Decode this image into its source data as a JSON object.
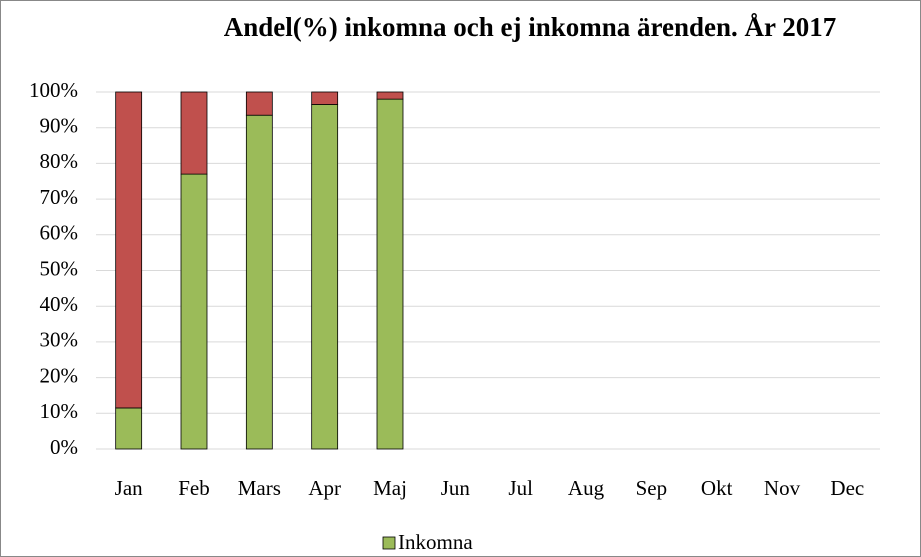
{
  "chart_data": {
    "type": "stacked_bar",
    "title": "Andel(%) inkomna och ej inkomna ärenden.  År 2017",
    "categories": [
      "Jan",
      "Feb",
      "Mars",
      "Apr",
      "Maj",
      "Jun",
      "Jul",
      "Aug",
      "Sep",
      "Okt",
      "Nov",
      "Dec"
    ],
    "series": [
      {
        "name": "Inkomna",
        "color": "#9bbb59",
        "values": [
          11.5,
          77,
          93.5,
          96.5,
          98,
          null,
          null,
          null,
          null,
          null,
          null,
          null
        ]
      },
      {
        "color": "#c0504d",
        "values": [
          88.5,
          23,
          6.5,
          3.5,
          2,
          null,
          null,
          null,
          null,
          null,
          null,
          null
        ]
      }
    ],
    "ylim": [
      0,
      100
    ],
    "yticks": [
      {
        "value": 0,
        "label": "0%"
      },
      {
        "value": 10,
        "label": "10%"
      },
      {
        "value": 20,
        "label": "20%"
      },
      {
        "value": 30,
        "label": "30%"
      },
      {
        "value": 40,
        "label": "40%"
      },
      {
        "value": 50,
        "label": "50%"
      },
      {
        "value": 60,
        "label": "60%"
      },
      {
        "value": 70,
        "label": "70%"
      },
      {
        "value": 80,
        "label": "80%"
      },
      {
        "value": 90,
        "label": "90%"
      },
      {
        "value": 100,
        "label": "100%"
      }
    ],
    "grid": true,
    "legend": "bottom"
  }
}
